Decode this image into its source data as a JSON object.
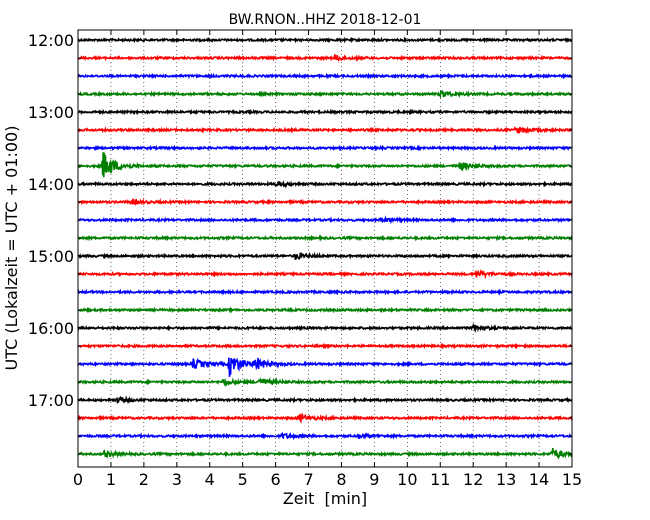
{
  "chart_data": {
    "type": "line",
    "title": "BW.RNON..HHZ 2018-12-01",
    "xlabel": "Zeit  [min]",
    "ylabel": "UTC (Lokalzeit = UTC + 01:00)",
    "xlim": [
      0,
      15
    ],
    "x_ticks": [
      "0",
      "1",
      "2",
      "3",
      "4",
      "5",
      "6",
      "7",
      "8",
      "9",
      "10",
      "11",
      "12",
      "13",
      "14",
      "15"
    ],
    "y_ticks": [
      "12:00",
      "13:00",
      "14:00",
      "15:00",
      "16:00",
      "17:00"
    ],
    "grid": "vertical dotted at each minute",
    "trace_colors": [
      "#000000",
      "#ff0000",
      "#0000ff",
      "#008000"
    ],
    "traces": [
      {
        "start": "12:00",
        "events": []
      },
      {
        "start": "12:15",
        "events": [
          {
            "minute": 7.8,
            "amplitude": 0.25
          }
        ]
      },
      {
        "start": "12:30",
        "events": []
      },
      {
        "start": "12:45",
        "events": [
          {
            "minute": 11.0,
            "amplitude": 0.3
          }
        ]
      },
      {
        "start": "13:00",
        "events": []
      },
      {
        "start": "13:15",
        "events": [
          {
            "minute": 13.3,
            "amplitude": 0.3
          }
        ]
      },
      {
        "start": "13:30",
        "events": []
      },
      {
        "start": "13:45",
        "events": [
          {
            "minute": 0.75,
            "amplitude": 1.4
          },
          {
            "minute": 11.6,
            "amplitude": 0.35
          }
        ]
      },
      {
        "start": "14:00",
        "events": [
          {
            "minute": 6.0,
            "amplitude": 0.2
          }
        ]
      },
      {
        "start": "14:15",
        "events": [
          {
            "minute": 1.6,
            "amplitude": 0.2
          }
        ]
      },
      {
        "start": "14:30",
        "events": [
          {
            "minute": 9.2,
            "amplitude": 0.2
          }
        ]
      },
      {
        "start": "14:45",
        "events": []
      },
      {
        "start": "15:00",
        "events": [
          {
            "minute": 6.6,
            "amplitude": 0.3
          }
        ]
      },
      {
        "start": "15:15",
        "events": [
          {
            "minute": 12.1,
            "amplitude": 0.3
          }
        ]
      },
      {
        "start": "15:30",
        "events": []
      },
      {
        "start": "15:45",
        "events": []
      },
      {
        "start": "16:00",
        "events": [
          {
            "minute": 12.0,
            "amplitude": 0.25
          }
        ]
      },
      {
        "start": "16:15",
        "events": []
      },
      {
        "start": "16:30",
        "events": [
          {
            "minute": 3.5,
            "amplitude": 0.45
          },
          {
            "minute": 4.6,
            "amplitude": 1.1
          },
          {
            "minute": 5.4,
            "amplitude": 0.5
          }
        ]
      },
      {
        "start": "16:45",
        "events": [
          {
            "minute": 4.4,
            "amplitude": 0.25
          },
          {
            "minute": 5.5,
            "amplitude": 0.35
          }
        ]
      },
      {
        "start": "17:00",
        "events": [
          {
            "minute": 1.2,
            "amplitude": 0.2
          }
        ]
      },
      {
        "start": "17:15",
        "events": [
          {
            "minute": 6.7,
            "amplitude": 0.3
          }
        ]
      },
      {
        "start": "17:30",
        "events": [
          {
            "minute": 6.2,
            "amplitude": 0.2
          },
          {
            "minute": 8.5,
            "amplitude": 0.2
          }
        ]
      },
      {
        "start": "17:45",
        "events": [
          {
            "minute": 0.8,
            "amplitude": 0.25
          },
          {
            "minute": 14.4,
            "amplitude": 0.5
          }
        ]
      }
    ]
  }
}
